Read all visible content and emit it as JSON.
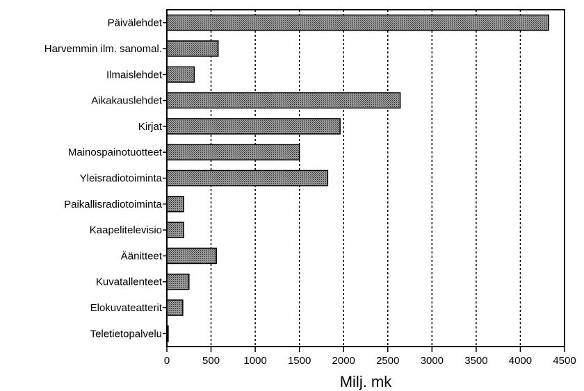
{
  "chart_data": {
    "type": "bar",
    "orientation": "horizontal",
    "categories": [
      "Päivälehdet",
      "Harvemmin ilm. sanomal.",
      "Ilmaislehdet",
      "Aikakauslehdet",
      "Kirjat",
      "Mainospainotuotteet",
      "Yleisradiotoiminta",
      "Paikallisradiotoiminta",
      "Kaapelitelevisio",
      "Äänitteet",
      "Kuvatallenteet",
      "Elokuvateatterit",
      "Teletietopalvelu"
    ],
    "values": [
      4320,
      580,
      310,
      2640,
      1960,
      1500,
      1820,
      190,
      190,
      560,
      250,
      180,
      15
    ],
    "xlabel": "Milj. mk",
    "ylabel": "",
    "xlim": [
      0,
      4500
    ],
    "xticks": [
      0,
      500,
      1000,
      1500,
      2000,
      2500,
      3000,
      3500,
      4000,
      4500
    ],
    "grid": "vertical dashed",
    "legend": "none",
    "bar_color": "#6f6f6f"
  }
}
